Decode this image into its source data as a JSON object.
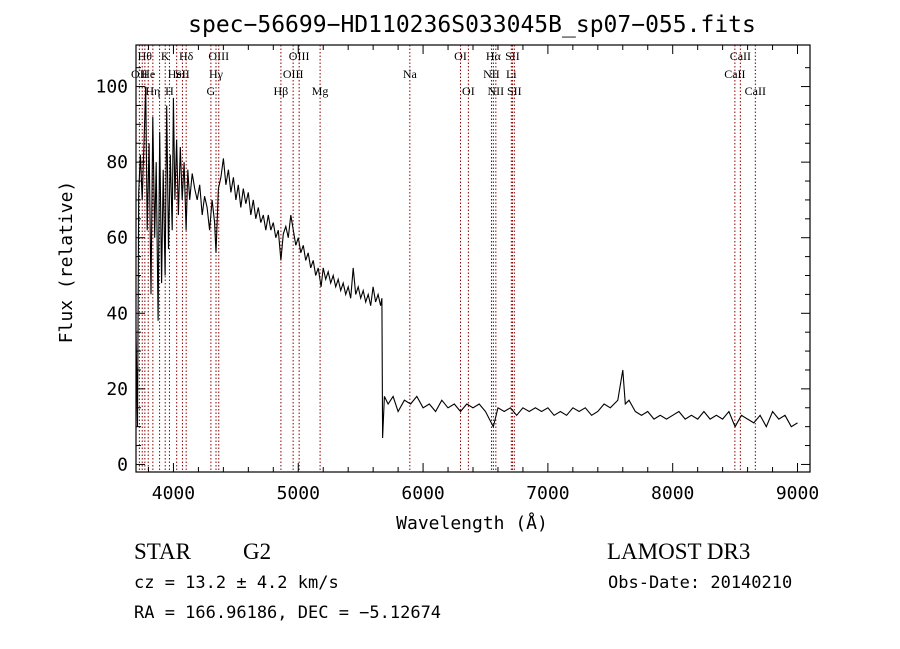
{
  "chart_data": {
    "type": "line",
    "title": "spec−56699−HD110236S033045B_sp07−055.fits",
    "xlabel": "Wavelength (Å)",
    "ylabel": "Flux (relative)",
    "xlim": [
      3700,
      9100
    ],
    "ylim": [
      -2,
      111
    ],
    "x_ticks": [
      4000,
      5000,
      6000,
      7000,
      8000,
      9000
    ],
    "y_ticks": [
      0,
      20,
      40,
      60,
      80,
      100
    ],
    "grid": false,
    "line_color": "#000000",
    "marker_color": "#8b0000",
    "spectrum_points": [
      [
        3700,
        35
      ],
      [
        3712,
        10
      ],
      [
        3722,
        72
      ],
      [
        3735,
        82
      ],
      [
        3750,
        70
      ],
      [
        3765,
        86
      ],
      [
        3778,
        100
      ],
      [
        3790,
        62
      ],
      [
        3805,
        85
      ],
      [
        3820,
        45
      ],
      [
        3835,
        92
      ],
      [
        3850,
        60
      ],
      [
        3862,
        80
      ],
      [
        3877,
        38
      ],
      [
        3890,
        88
      ],
      [
        3905,
        48
      ],
      [
        3918,
        78
      ],
      [
        3933,
        50
      ],
      [
        3946,
        95
      ],
      [
        3960,
        57
      ],
      [
        3975,
        82
      ],
      [
        3990,
        62
      ],
      [
        4000,
        97
      ],
      [
        4012,
        70
      ],
      [
        4025,
        86
      ],
      [
        4040,
        66
      ],
      [
        4055,
        84
      ],
      [
        4070,
        70
      ],
      [
        4085,
        80
      ],
      [
        4101,
        62
      ],
      [
        4115,
        78
      ],
      [
        4130,
        70
      ],
      [
        4150,
        77
      ],
      [
        4170,
        73
      ],
      [
        4190,
        70
      ],
      [
        4210,
        74
      ],
      [
        4230,
        66
      ],
      [
        4250,
        71
      ],
      [
        4270,
        68
      ],
      [
        4290,
        62
      ],
      [
        4310,
        70
      ],
      [
        4330,
        64
      ],
      [
        4341,
        56
      ],
      [
        4360,
        73
      ],
      [
        4380,
        76
      ],
      [
        4400,
        81
      ],
      [
        4420,
        74
      ],
      [
        4440,
        78
      ],
      [
        4460,
        72
      ],
      [
        4480,
        76
      ],
      [
        4500,
        70
      ],
      [
        4520,
        74
      ],
      [
        4540,
        68
      ],
      [
        4560,
        73
      ],
      [
        4580,
        69
      ],
      [
        4600,
        72
      ],
      [
        4620,
        66
      ],
      [
        4640,
        70
      ],
      [
        4660,
        65
      ],
      [
        4680,
        68
      ],
      [
        4700,
        64
      ],
      [
        4720,
        66
      ],
      [
        4740,
        62
      ],
      [
        4760,
        66
      ],
      [
        4780,
        62
      ],
      [
        4800,
        64
      ],
      [
        4820,
        60
      ],
      [
        4840,
        62
      ],
      [
        4861,
        54
      ],
      [
        4880,
        61
      ],
      [
        4900,
        63
      ],
      [
        4920,
        60
      ],
      [
        4940,
        66
      ],
      [
        4960,
        62
      ],
      [
        4980,
        58
      ],
      [
        5000,
        60
      ],
      [
        5020,
        56
      ],
      [
        5040,
        58
      ],
      [
        5060,
        54
      ],
      [
        5080,
        56
      ],
      [
        5100,
        52
      ],
      [
        5120,
        54
      ],
      [
        5140,
        50
      ],
      [
        5160,
        52
      ],
      [
        5183,
        47
      ],
      [
        5200,
        52
      ],
      [
        5220,
        49
      ],
      [
        5240,
        51
      ],
      [
        5260,
        48
      ],
      [
        5280,
        50
      ],
      [
        5300,
        47
      ],
      [
        5320,
        49
      ],
      [
        5340,
        46
      ],
      [
        5360,
        48
      ],
      [
        5380,
        45
      ],
      [
        5400,
        47
      ],
      [
        5420,
        44
      ],
      [
        5440,
        52
      ],
      [
        5460,
        45
      ],
      [
        5480,
        47
      ],
      [
        5500,
        44
      ],
      [
        5520,
        46
      ],
      [
        5540,
        43
      ],
      [
        5560,
        45
      ],
      [
        5580,
        42
      ],
      [
        5600,
        47
      ],
      [
        5620,
        43
      ],
      [
        5640,
        45
      ],
      [
        5660,
        42
      ],
      [
        5670,
        44
      ],
      [
        5676,
        7
      ],
      [
        5690,
        18
      ],
      [
        5720,
        16
      ],
      [
        5760,
        18
      ],
      [
        5800,
        14
      ],
      [
        5850,
        17
      ],
      [
        5900,
        16
      ],
      [
        5950,
        18
      ],
      [
        6000,
        15
      ],
      [
        6050,
        16
      ],
      [
        6100,
        14
      ],
      [
        6150,
        17
      ],
      [
        6200,
        15
      ],
      [
        6250,
        16
      ],
      [
        6300,
        14
      ],
      [
        6350,
        16
      ],
      [
        6400,
        15
      ],
      [
        6450,
        16
      ],
      [
        6500,
        14
      ],
      [
        6563,
        10
      ],
      [
        6600,
        15
      ],
      [
        6650,
        14
      ],
      [
        6700,
        15
      ],
      [
        6750,
        13
      ],
      [
        6800,
        15
      ],
      [
        6850,
        14
      ],
      [
        6900,
        15
      ],
      [
        6950,
        14
      ],
      [
        7000,
        15
      ],
      [
        7050,
        13
      ],
      [
        7100,
        14
      ],
      [
        7150,
        13
      ],
      [
        7200,
        15
      ],
      [
        7250,
        14
      ],
      [
        7300,
        15
      ],
      [
        7350,
        13
      ],
      [
        7400,
        14
      ],
      [
        7450,
        16
      ],
      [
        7500,
        15
      ],
      [
        7560,
        17
      ],
      [
        7600,
        25
      ],
      [
        7620,
        16
      ],
      [
        7650,
        17
      ],
      [
        7700,
        14
      ],
      [
        7750,
        13
      ],
      [
        7800,
        14
      ],
      [
        7850,
        12
      ],
      [
        7900,
        13
      ],
      [
        7950,
        12
      ],
      [
        8000,
        13
      ],
      [
        8050,
        14
      ],
      [
        8100,
        12
      ],
      [
        8150,
        13
      ],
      [
        8200,
        12
      ],
      [
        8250,
        14
      ],
      [
        8300,
        12
      ],
      [
        8350,
        13
      ],
      [
        8400,
        12
      ],
      [
        8450,
        14
      ],
      [
        8500,
        10
      ],
      [
        8550,
        13
      ],
      [
        8600,
        12
      ],
      [
        8650,
        11
      ],
      [
        8700,
        13
      ],
      [
        8750,
        10
      ],
      [
        8800,
        14
      ],
      [
        8850,
        12
      ],
      [
        8900,
        13
      ],
      [
        8950,
        10
      ],
      [
        9000,
        11
      ]
    ],
    "lines": [
      {
        "wl": 3727,
        "label": "OII",
        "row": 1
      },
      {
        "wl": 3750,
        "label": "",
        "row": 0
      },
      {
        "wl": 3771,
        "label": "Hθ",
        "row": 0
      },
      {
        "wl": 3798,
        "label": "He",
        "row": 1
      },
      {
        "wl": 3835,
        "label": "Hη",
        "row": 2
      },
      {
        "wl": 3889,
        "label": "",
        "row": 0
      },
      {
        "wl": 3934,
        "label": "K",
        "row": 0
      },
      {
        "wl": 3968,
        "label": "H",
        "row": 2
      },
      {
        "wl": 4026,
        "label": "HeI",
        "row": 1
      },
      {
        "wl": 4072,
        "label": "SII",
        "row": 1
      },
      {
        "wl": 4102,
        "label": "Hδ",
        "row": 0
      },
      {
        "wl": 4300,
        "label": "G",
        "row": 2
      },
      {
        "wl": 4341,
        "label": "Hγ",
        "row": 1
      },
      {
        "wl": 4363,
        "label": "OIII",
        "row": 0
      },
      {
        "wl": 4861,
        "label": "Hβ",
        "row": 2
      },
      {
        "wl": 4959,
        "label": "OIII",
        "row": 1
      },
      {
        "wl": 5007,
        "label": "OIII",
        "row": 0
      },
      {
        "wl": 5175,
        "label": "Mg",
        "row": 2
      },
      {
        "wl": 5894,
        "label": "Na",
        "row": 1
      },
      {
        "wl": 6300,
        "label": "OI",
        "row": 0
      },
      {
        "wl": 6363,
        "label": "OI",
        "row": 2
      },
      {
        "wl": 6548,
        "label": "NII",
        "row": 1
      },
      {
        "wl": 6563,
        "label": "Hα",
        "row": 0
      },
      {
        "wl": 6583,
        "label": "NII",
        "row": 2
      },
      {
        "wl": 6707,
        "label": "Li",
        "row": 1
      },
      {
        "wl": 6716,
        "label": "SII",
        "row": 0
      },
      {
        "wl": 6731,
        "label": "SII",
        "row": 2
      },
      {
        "wl": 8498,
        "label": "CaII",
        "row": 1
      },
      {
        "wl": 8542,
        "label": "CaII",
        "row": 0
      },
      {
        "wl": 8662,
        "label": "CaII",
        "row": 2
      }
    ]
  },
  "info": {
    "class_label": "STAR",
    "subclass_label": "G2",
    "survey_label": "LAMOST DR3",
    "redshift_text": "cz = 13.2 ± 4.2 km/s",
    "obsdate_text": "Obs-Date: 20140210",
    "coords_text": "RA = 166.96186, DEC =  −5.12674"
  }
}
